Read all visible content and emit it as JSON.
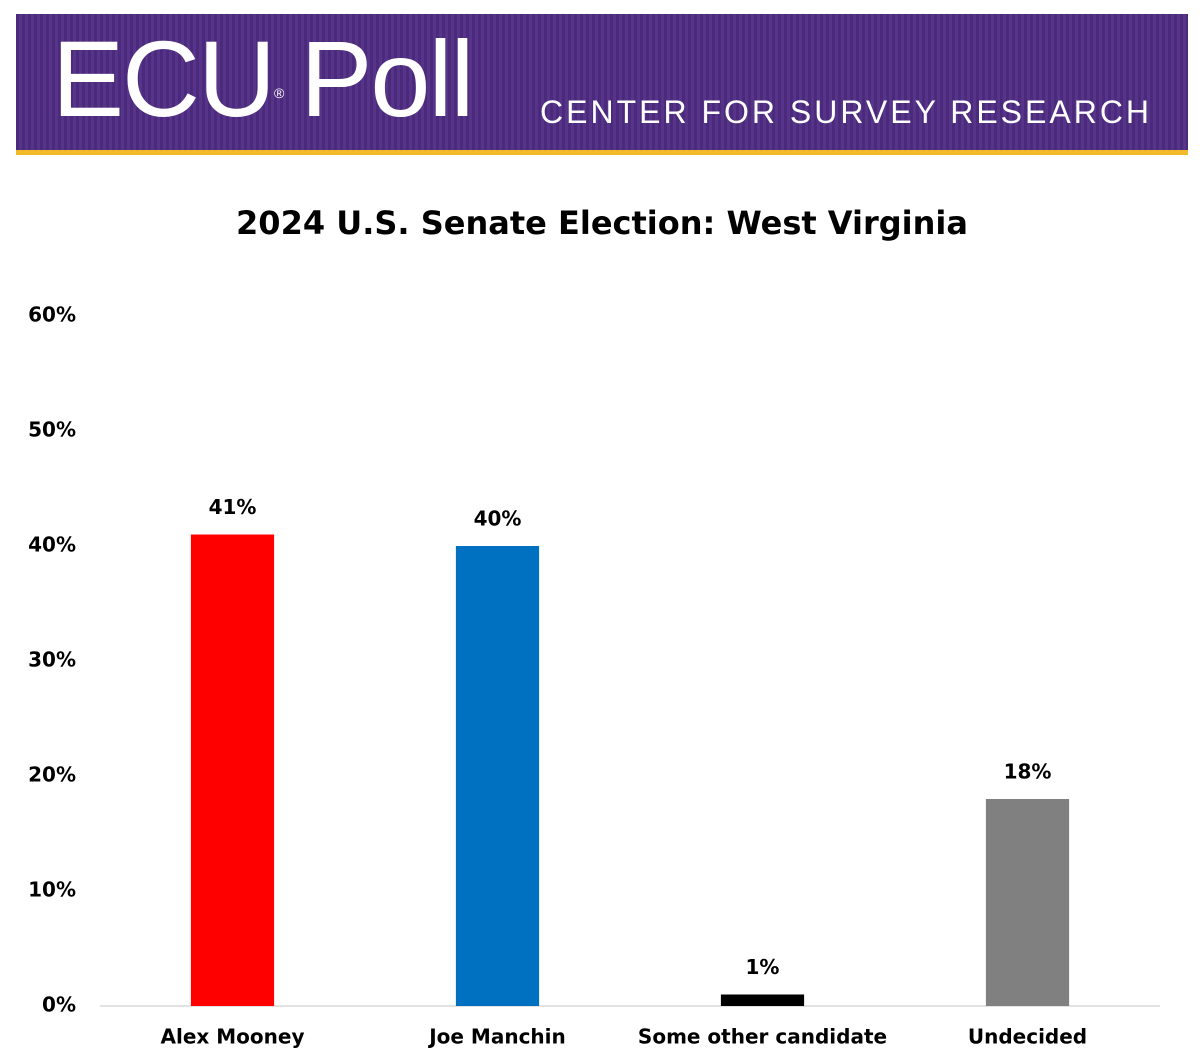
{
  "header": {
    "logo": [
      "ECU",
      "®",
      "Poll"
    ],
    "tagline": "CENTER FOR SURVEY RESEARCH"
  },
  "chart_data": {
    "type": "bar",
    "title": "2024 U.S. Senate Election: West Virginia",
    "categories": [
      "Alex Mooney",
      "Joe Manchin",
      "Some other candidate",
      "Undecided"
    ],
    "values": [
      41,
      40,
      1,
      18
    ],
    "value_labels": [
      "41%",
      "40%",
      "1%",
      "18%"
    ],
    "colors": [
      "#ff0000",
      "#0070c0",
      "#000000",
      "#808080"
    ],
    "ylim": [
      0,
      60
    ],
    "yticks": [
      {
        "value": 0,
        "label": "0%"
      },
      {
        "value": 10,
        "label": "10%"
      },
      {
        "value": 20,
        "label": "20%"
      },
      {
        "value": 30,
        "label": "30%"
      },
      {
        "value": 40,
        "label": "40%"
      },
      {
        "value": 50,
        "label": "50%"
      },
      {
        "value": 60,
        "label": "60%"
      }
    ],
    "grid": false
  }
}
